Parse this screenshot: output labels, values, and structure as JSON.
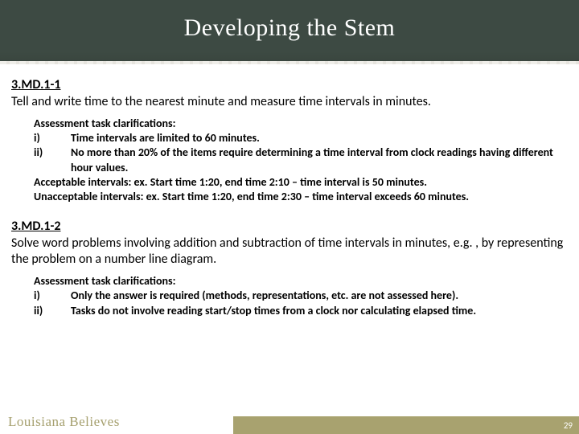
{
  "header": {
    "title": "Developing the Stem"
  },
  "standards": [
    {
      "code": "3.MD.1-1",
      "text": "Tell and write time to the nearest minute and measure time intervals in minutes.",
      "clarifications": {
        "heading": "Assessment task clarifications:",
        "items": [
          {
            "num": "i)",
            "body": "Time intervals are limited to 60 minutes."
          },
          {
            "num": "ii)",
            "body": "No more than 20% of the items require determining a time interval from clock readings having different hour values."
          }
        ],
        "notes": [
          "Acceptable intervals:  ex. Start time 1:20, end time 2:10 – time interval is 50 minutes.",
          "Unacceptable intervals:  ex. Start time 1:20, end time 2:30 – time interval exceeds 60 minutes."
        ]
      }
    },
    {
      "code": "3.MD.1-2",
      "text": "Solve word problems involving addition and subtraction of time intervals in minutes, e.g. , by representing the problem on a number line diagram.",
      "clarifications": {
        "heading": "Assessment task clarifications:",
        "items": [
          {
            "num": "i)",
            "body": "Only the answer is required (methods, representations, etc. are not assessed here)."
          },
          {
            "num": "ii)",
            "body": "Tasks do not involve reading start/stop times from a clock nor calculating elapsed time."
          }
        ],
        "notes": []
      }
    }
  ],
  "footer": {
    "brand": "Louisiana Believes",
    "page": "29"
  },
  "colors": {
    "header_bg": "#3d4a43",
    "title_color": "#ffffff",
    "text_color": "#000000",
    "brand_color": "#a6a06f",
    "stripe_color": "#a8a26f",
    "page_bg": "#ffffff"
  }
}
